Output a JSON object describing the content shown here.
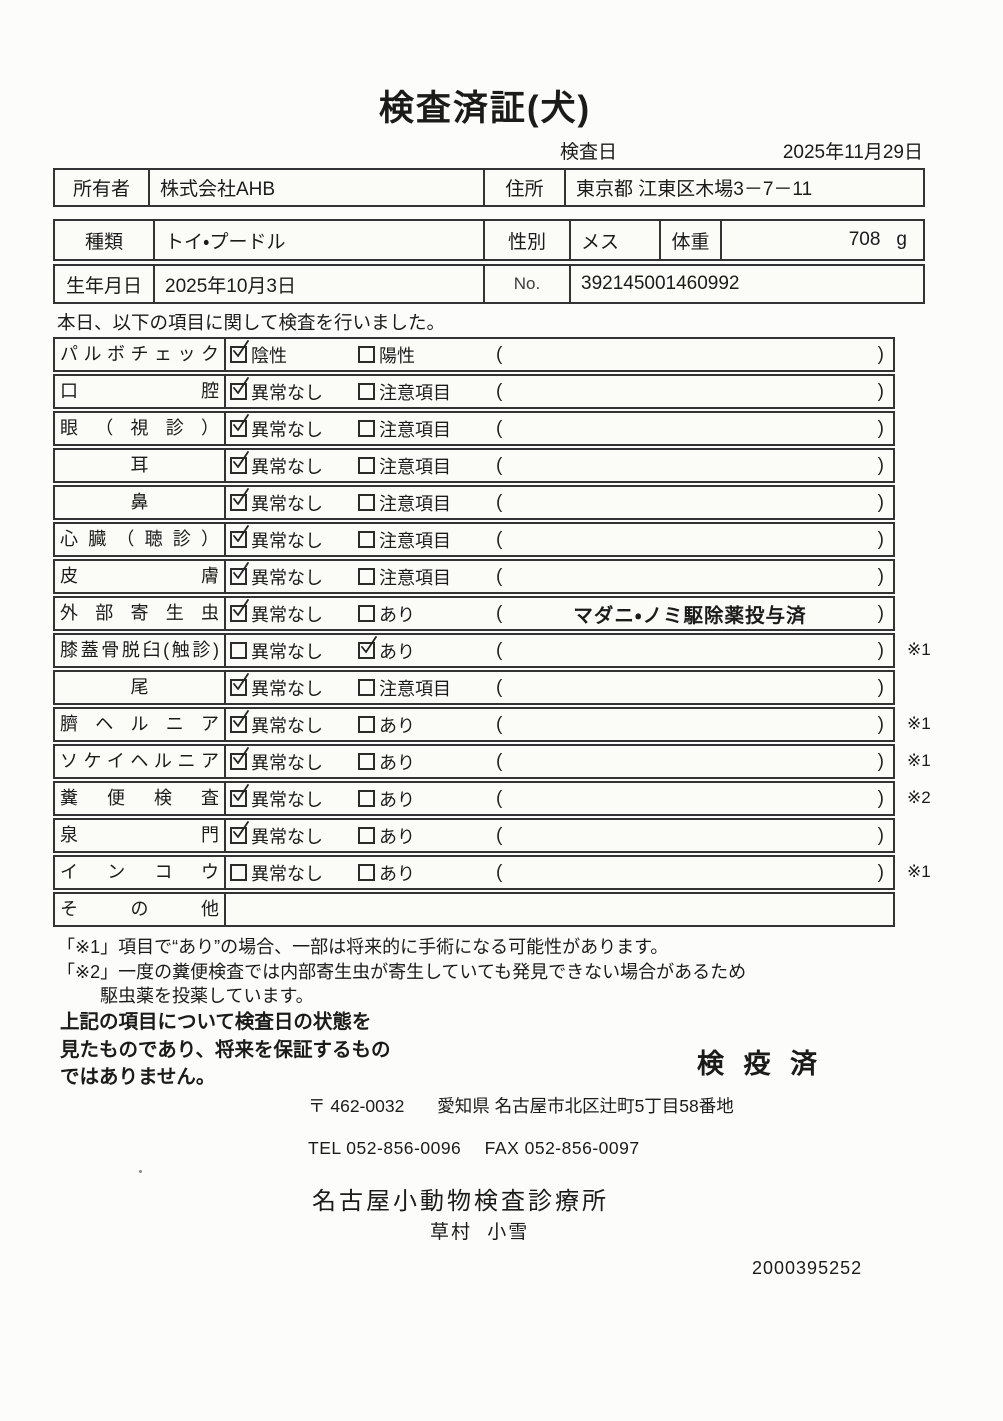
{
  "title": "検査済証(犬)",
  "date": {
    "label": "検査日",
    "value": "2025年11月29日"
  },
  "owner": {
    "label": "所有者",
    "name": "株式会社AHB",
    "address_label": "住所",
    "address": "東京都 江東区木場3－7－11"
  },
  "pet": {
    "species_label": "種類",
    "species": "トイ・プードル",
    "sex_label": "性別",
    "sex": "メス",
    "weight_label": "体重",
    "weight": "708",
    "weight_unit": "g",
    "birth_label": "生年月日",
    "birth_date": "2025年10月3日",
    "no_label": "No.",
    "no_value": "392145001460992"
  },
  "intro": "本日、以下の項目に関して検査を行いました。",
  "exam_rows": [
    {
      "label": "パルボチェック",
      "align": "justify",
      "options": [
        {
          "text": "陰性",
          "checked": true
        },
        {
          "text": "陽性",
          "checked": false
        }
      ],
      "note": "",
      "mark": "",
      "parens": true
    },
    {
      "label": "口腔",
      "align": "justify",
      "options": [
        {
          "text": "異常なし",
          "checked": true
        },
        {
          "text": "注意項目",
          "checked": false
        }
      ],
      "note": "",
      "mark": "",
      "parens": true
    },
    {
      "label": "眼（視診）",
      "align": "justify",
      "options": [
        {
          "text": "異常なし",
          "checked": true
        },
        {
          "text": "注意項目",
          "checked": false
        }
      ],
      "note": "",
      "mark": "",
      "parens": true
    },
    {
      "label": "耳",
      "align": "center",
      "options": [
        {
          "text": "異常なし",
          "checked": true
        },
        {
          "text": "注意項目",
          "checked": false
        }
      ],
      "note": "",
      "mark": "",
      "parens": true
    },
    {
      "label": "鼻",
      "align": "center",
      "options": [
        {
          "text": "異常なし",
          "checked": true
        },
        {
          "text": "注意項目",
          "checked": false
        }
      ],
      "note": "",
      "mark": "",
      "parens": true
    },
    {
      "label": "心臓（聴診）",
      "align": "justify",
      "options": [
        {
          "text": "異常なし",
          "checked": true
        },
        {
          "text": "注意項目",
          "checked": false
        }
      ],
      "note": "",
      "mark": "",
      "parens": true
    },
    {
      "label": "皮膚",
      "align": "justify",
      "options": [
        {
          "text": "異常なし",
          "checked": true
        },
        {
          "text": "注意項目",
          "checked": false
        }
      ],
      "note": "",
      "mark": "",
      "parens": true
    },
    {
      "label": "外部寄生虫",
      "align": "justify",
      "options": [
        {
          "text": "異常なし",
          "checked": true
        },
        {
          "text": "あり",
          "checked": false
        }
      ],
      "note": "マダニ・ノミ駆除薬投与済",
      "mark": "",
      "parens": true
    },
    {
      "label": "膝蓋骨脱臼(触診)",
      "align": "justify",
      "options": [
        {
          "text": "異常なし",
          "checked": false
        },
        {
          "text": "あり",
          "checked": true
        }
      ],
      "note": "",
      "mark": "※1",
      "parens": true
    },
    {
      "label": "尾",
      "align": "center",
      "options": [
        {
          "text": "異常なし",
          "checked": true
        },
        {
          "text": "注意項目",
          "checked": false
        }
      ],
      "note": "",
      "mark": "",
      "parens": true
    },
    {
      "label": "臍ヘルニア",
      "align": "justify",
      "options": [
        {
          "text": "異常なし",
          "checked": true
        },
        {
          "text": "あり",
          "checked": false
        }
      ],
      "note": "",
      "mark": "※1",
      "parens": true
    },
    {
      "label": "ソケイヘルニア",
      "align": "justify",
      "options": [
        {
          "text": "異常なし",
          "checked": true
        },
        {
          "text": "あり",
          "checked": false
        }
      ],
      "note": "",
      "mark": "※1",
      "parens": true
    },
    {
      "label": "糞便検査",
      "align": "justify",
      "options": [
        {
          "text": "異常なし",
          "checked": true
        },
        {
          "text": "あり",
          "checked": false
        }
      ],
      "note": "",
      "mark": "※2",
      "parens": true
    },
    {
      "label": "泉門",
      "align": "justify",
      "options": [
        {
          "text": "異常なし",
          "checked": true
        },
        {
          "text": "あり",
          "checked": false
        }
      ],
      "note": "",
      "mark": "",
      "parens": true
    },
    {
      "label": "インコウ",
      "align": "justify",
      "options": [
        {
          "text": "異常なし",
          "checked": false
        },
        {
          "text": "あり",
          "checked": false
        }
      ],
      "note": "",
      "mark": "※1",
      "parens": true
    },
    {
      "label": "その他",
      "align": "justify",
      "options": [],
      "note": "",
      "mark": "",
      "parens": false
    }
  ],
  "footnotes": {
    "line1": "「※1」項目で“あり”の場合、一部は将来的に手術になる可能性があります。",
    "line2": "「※2」一度の糞便検査では内部寄生虫が寄生していても発見できない場合があるため",
    "line3": "駆虫薬を投薬しています。"
  },
  "disclaimer": {
    "line1": "上記の項目について検査日の状態を",
    "line2": "見たものであり、将来を保証するもの",
    "line3": "ではありません。"
  },
  "stamp": "検 疫 済",
  "clinic": {
    "postal": "〒 462-0032",
    "address": "愛知県 名古屋市北区辻町5丁目58番地",
    "tel": "TEL 052-856-0096",
    "fax": "FAX 052-856-0097",
    "name": "名古屋小動物検査診療所",
    "vet_name": "草村 小雪",
    "serial": "2000395252"
  }
}
